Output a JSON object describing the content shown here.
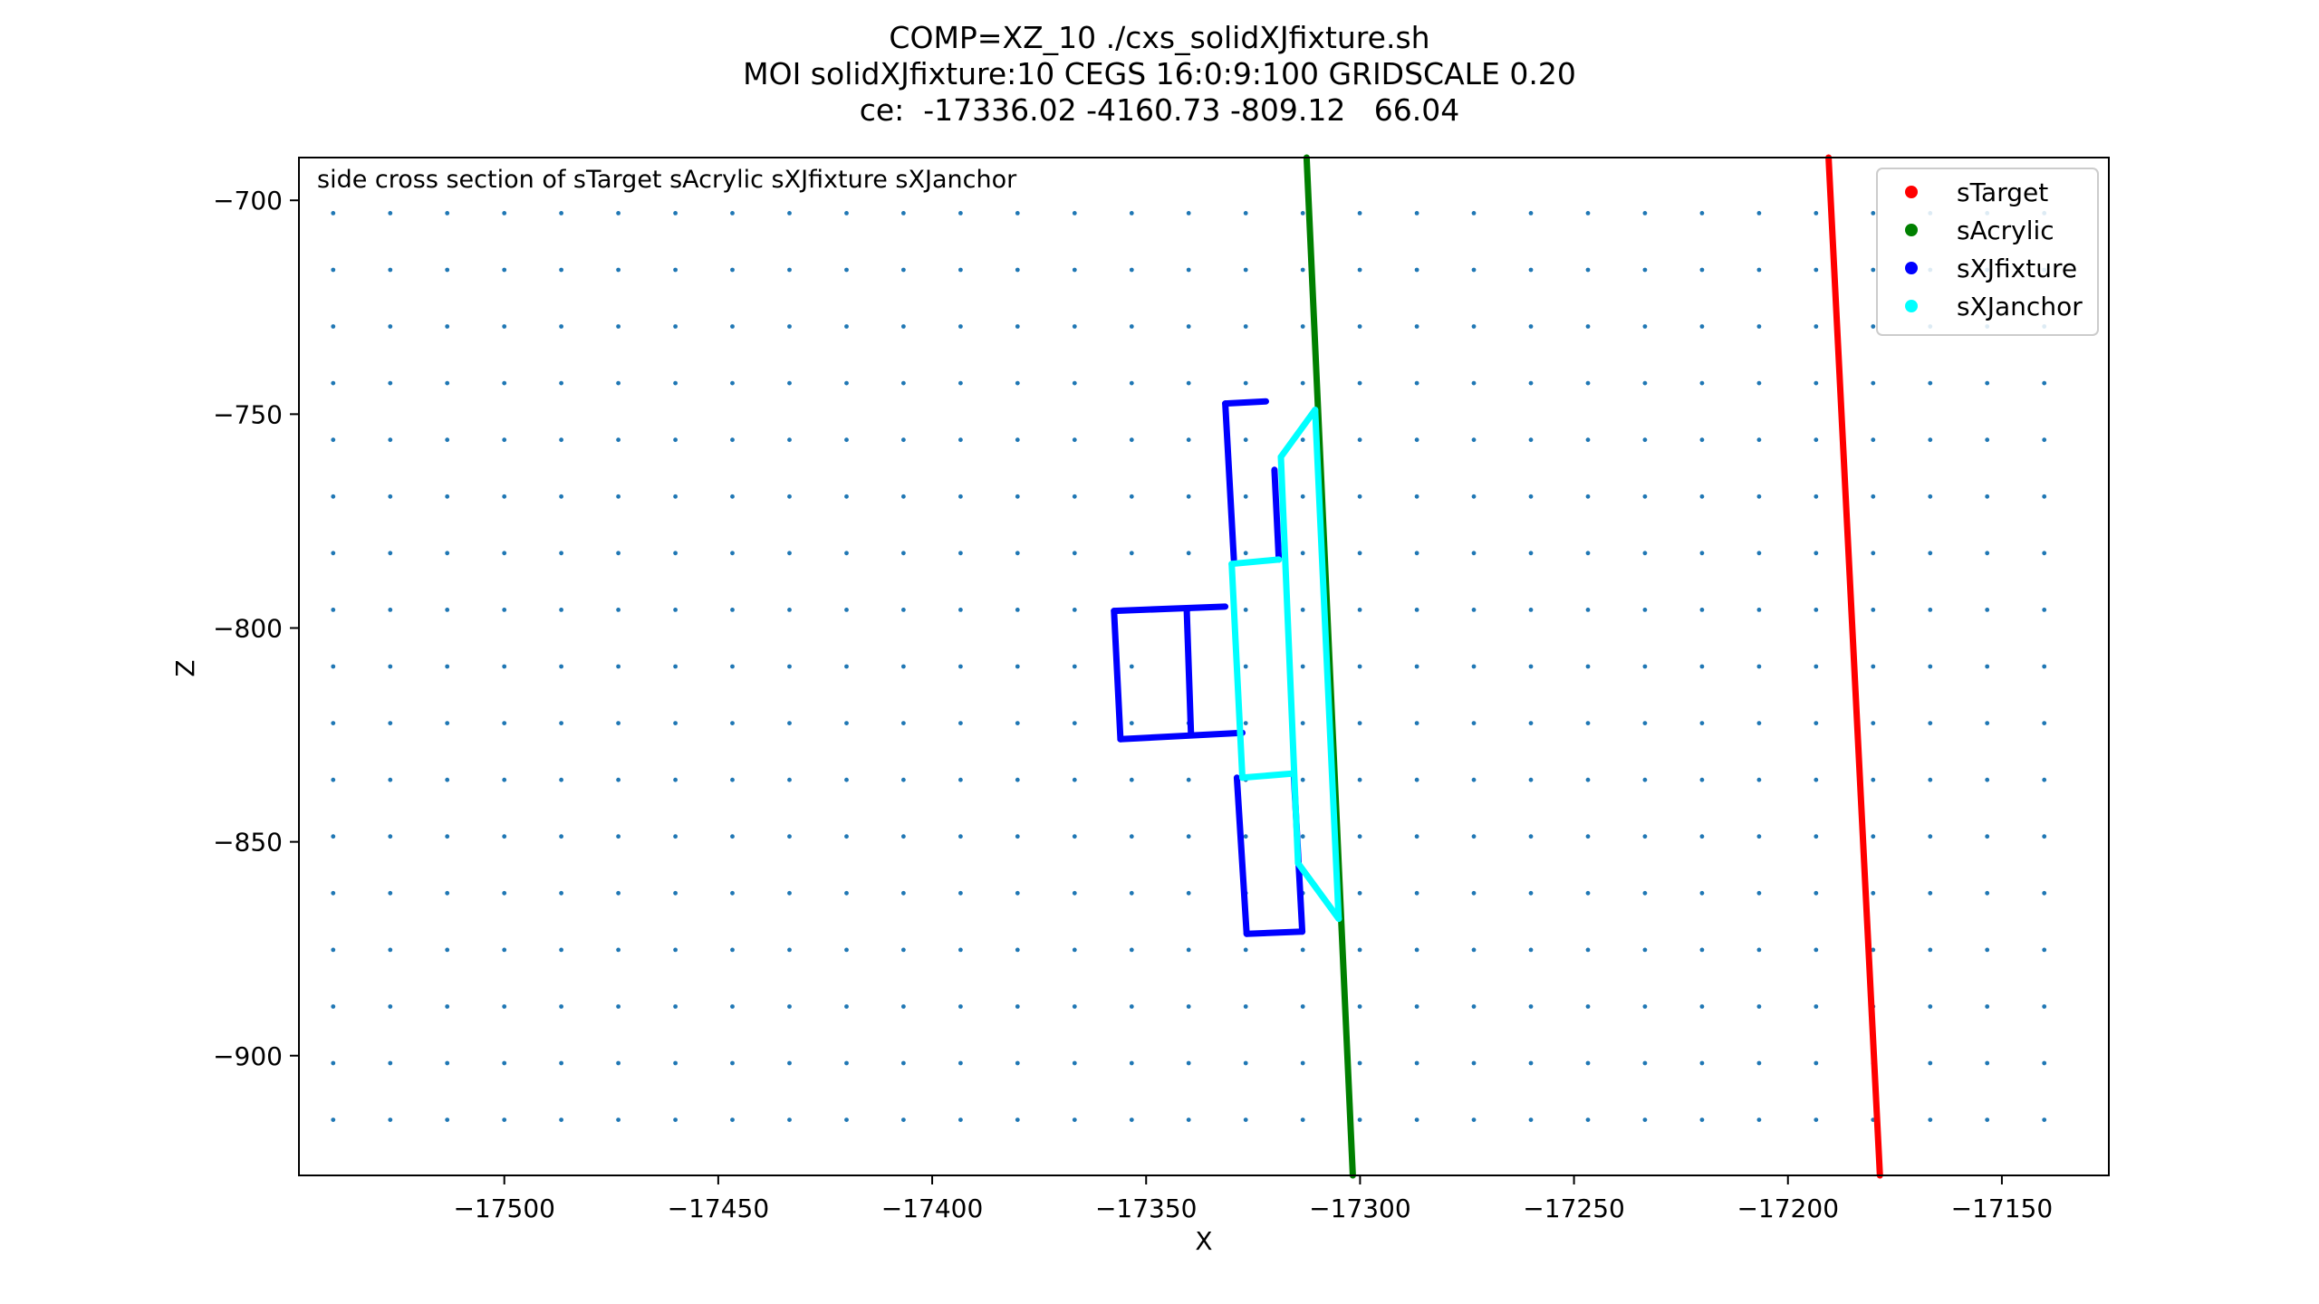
{
  "chart_data": {
    "type": "scatter",
    "title_lines": [
      "COMP=XZ_10 ./cxs_solidXJfixture.sh",
      "MOI solidXJfixture:10 CEGS 16:0:9:100 GRIDSCALE 0.20",
      "ce:  -17336.02 -4160.73 -809.12   66.04"
    ],
    "annotation": "side cross section of sTarget sAcrylic sXJfixture sXJanchor",
    "xlabel": "X",
    "ylabel": "Z",
    "xlim": [
      -17548,
      -17125
    ],
    "ylim": [
      -928,
      -690
    ],
    "x_ticks": [
      -17500,
      -17450,
      -17400,
      -17350,
      -17300,
      -17250,
      -17200,
      -17150
    ],
    "x_tick_labels": [
      "−17500",
      "−17450",
      "−17400",
      "−17350",
      "−17300",
      "−17250",
      "−17200",
      "−17150"
    ],
    "y_ticks": [
      -700,
      -750,
      -800,
      -850,
      -900
    ],
    "y_tick_labels": [
      "−700",
      "−750",
      "−800",
      "−850",
      "−900"
    ],
    "grid": false,
    "legend_position": "top-right",
    "series": [
      {
        "name": "sTarget",
        "color": "#ff0000",
        "segments": [
          [
            [
              -17190.5,
              -690
            ],
            [
              -17178.5,
              -928
            ]
          ]
        ]
      },
      {
        "name": "sAcrylic",
        "color": "#008000",
        "segments": [
          [
            [
              -17312.5,
              -690
            ],
            [
              -17301.7,
              -928
            ]
          ]
        ]
      },
      {
        "name": "sXJfixture",
        "color": "#0000ff",
        "segments": [
          [
            [
              -17331.5,
              -747.5
            ],
            [
              -17322,
              -747
            ]
          ],
          [
            [
              -17331.5,
              -747.5
            ],
            [
              -17329.5,
              -784
            ]
          ],
          [
            [
              -17320,
              -763
            ],
            [
              -17319,
              -784
            ]
          ],
          [
            [
              -17357.5,
              -796
            ],
            [
              -17331.5,
              -795
            ]
          ],
          [
            [
              -17357.5,
              -796
            ],
            [
              -17356,
              -826
            ]
          ],
          [
            [
              -17356,
              -826
            ],
            [
              -17327.5,
              -824.5
            ]
          ],
          [
            [
              -17340.5,
              -796
            ],
            [
              -17339.5,
              -825
            ]
          ],
          [
            [
              -17328.8,
              -835
            ],
            [
              -17326.5,
              -871.5
            ]
          ],
          [
            [
              -17326.5,
              -871.5
            ],
            [
              -17313.5,
              -871
            ]
          ],
          [
            [
              -17315.5,
              -834
            ],
            [
              -17313.5,
              -871
            ]
          ]
        ]
      },
      {
        "name": "sXJanchor",
        "color": "#00ffff",
        "segments": [
          [
            [
              -17310.5,
              -749
            ],
            [
              -17318.5,
              -760
            ]
          ],
          [
            [
              -17310.5,
              -749
            ],
            [
              -17305,
              -868
            ]
          ],
          [
            [
              -17305,
              -868
            ],
            [
              -17314.5,
              -855
            ]
          ],
          [
            [
              -17330,
              -785
            ],
            [
              -17319,
              -784
            ]
          ],
          [
            [
              -17330,
              -785
            ],
            [
              -17327.5,
              -835
            ]
          ],
          [
            [
              -17327.5,
              -835
            ],
            [
              -17315.5,
              -834
            ]
          ],
          [
            [
              -17318.5,
              -760
            ],
            [
              -17314.5,
              -855
            ]
          ]
        ]
      }
    ],
    "background_grid_points": {
      "color": "#1f77b4",
      "x_range": [
        -17540,
        -17140
      ],
      "x_step": 13.33,
      "z_range": [
        -915,
        -703
      ],
      "z_step": 13.25
    }
  }
}
